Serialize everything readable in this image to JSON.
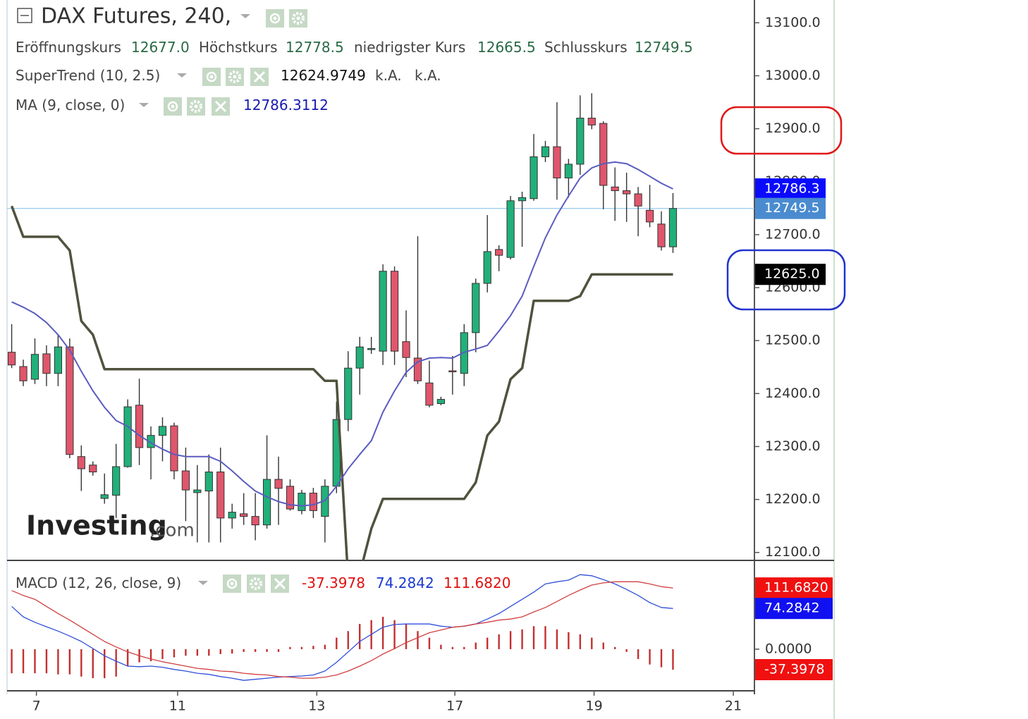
{
  "chart_data": [
    {
      "type": "candlestick",
      "title": "DAX Futures, 240,",
      "legend": [
        {
          "label": "Eröffnungskurs",
          "value": "12677.0"
        },
        {
          "label": "Höchstkurs",
          "value": "12778.5"
        },
        {
          "label": "niedrigster Kurs",
          "value": "12665.5"
        },
        {
          "label": "Schlusskurs",
          "value": "12749.5"
        }
      ],
      "watermark": "Investing",
      "watermark_suffix": ".com",
      "xlim": [
        -0.4,
        63.9
      ],
      "ylim": [
        12085,
        13143
      ],
      "yticks": [
        {
          "value": 12100,
          "label": "12100.0"
        },
        {
          "value": 12200,
          "label": "12200.0"
        },
        {
          "value": 12300,
          "label": "12300.0"
        },
        {
          "value": 12400,
          "label": "12400.0"
        },
        {
          "value": 12500,
          "label": "12500.0"
        },
        {
          "value": 12600,
          "label": "12600.0"
        },
        {
          "value": 12700,
          "label": "12700.0"
        },
        {
          "value": 12800,
          "label": "12800.0"
        },
        {
          "value": 12900,
          "label": "12900.0"
        },
        {
          "value": 13000,
          "label": "13000.0"
        },
        {
          "value": 13100,
          "label": "13100.0"
        }
      ],
      "up_color": "#22b07a",
      "down_color": "#e0566c",
      "open": [
        12478,
        12451,
        12427,
        12475,
        12438,
        12488,
        12281,
        12265,
        12202,
        12208,
        12262,
        12378,
        12298,
        12321,
        12339,
        12254,
        12213,
        12216,
        12252,
        12165,
        12173,
        12168,
        12152,
        12238,
        12225,
        12179,
        12212,
        12168,
        12225,
        12351,
        12448,
        12483,
        12480,
        12631,
        12498,
        12467,
        12420,
        12381,
        12443,
        12438,
        12515,
        12608,
        12672,
        12657,
        12764,
        12768,
        12847,
        12866,
        12807,
        12833,
        12920,
        12910,
        12790,
        12783,
        12777,
        12746,
        12720,
        12677
      ],
      "high": [
        12531,
        12464,
        12504,
        12491,
        12511,
        12504,
        12302,
        12272,
        12249,
        12305,
        12389,
        12428,
        12338,
        12355,
        12345,
        12298,
        12265,
        12285,
        12298,
        12192,
        12212,
        12212,
        12321,
        12281,
        12238,
        12218,
        12222,
        12238,
        12385,
        12480,
        12507,
        12507,
        12644,
        12640,
        12557,
        12697,
        12462,
        12394,
        12471,
        12531,
        12617,
        12737,
        12680,
        12773,
        12781,
        12890,
        12877,
        12950,
        12843,
        12963,
        12967,
        12914,
        12827,
        12817,
        12790,
        12794,
        12744,
        12778.5
      ],
      "low": [
        12448,
        12414,
        12418,
        12414,
        12414,
        12278,
        12216,
        12245,
        12192,
        12165,
        12260,
        12265,
        12238,
        12272,
        12238,
        12159,
        12119,
        12119,
        12119,
        12145,
        12152,
        12123,
        12145,
        12152,
        12179,
        12172,
        12165,
        12119,
        12212,
        12329,
        12398,
        12475,
        12454,
        12454,
        12431,
        12418,
        12374,
        12378,
        12398,
        12414,
        12478,
        12591,
        12631,
        12653,
        12677,
        12764,
        12837,
        12766,
        12770,
        12813,
        12899,
        12748,
        12726,
        12724,
        12697,
        12714,
        12670,
        12665.5
      ],
      "close": [
        12454,
        12424,
        12474,
        12438,
        12488,
        12285,
        12258,
        12252,
        12209,
        12262,
        12375,
        12298,
        12321,
        12338,
        12254,
        12218,
        12218,
        12252,
        12165,
        12176,
        12168,
        12152,
        12238,
        12221,
        12182,
        12212,
        12179,
        12225,
        12351,
        12448,
        12488,
        12485,
        12631,
        12480,
        12468,
        12424,
        12378,
        12389,
        12442,
        12515,
        12608,
        12668,
        12661,
        12764,
        12770,
        12847,
        12866,
        12807,
        12833,
        12920,
        12907,
        12793,
        12783,
        12777,
        12754,
        12724,
        12677,
        12749.5
      ],
      "series": [
        {
          "name": "SuperTrend (10, 2.5)",
          "color": "#50523e",
          "width": 3.5,
          "legend_values": [
            "12624.9749",
            "k.A.",
            "k.A."
          ],
          "values": [
            12754,
            12696,
            12696,
            12696,
            12696,
            12670,
            12537,
            12511,
            12446,
            12446,
            12446,
            12446,
            12446,
            12446,
            12446,
            12446,
            12446,
            12446,
            12446,
            12446,
            12446,
            12446,
            12446,
            12446,
            12446,
            12446,
            12446,
            12424,
            12424,
            12050,
            12060,
            12145,
            12201,
            12201,
            12201,
            12201,
            12201,
            12201,
            12201,
            12201,
            12232,
            12321,
            12347,
            12427,
            12448,
            12575,
            12575,
            12575,
            12575,
            12584,
            12625,
            12625,
            12625,
            12625,
            12625,
            12625,
            12625,
            12624.9749
          ]
        },
        {
          "name": "MA (9, close, 0)",
          "color": "#5a5cc0",
          "width": 2,
          "legend_values": [
            "12786.3112"
          ],
          "values": [
            12573,
            12563,
            12551,
            12534,
            12511,
            12482,
            12442,
            12405,
            12374,
            12349,
            12338,
            12321,
            12307,
            12295,
            12285,
            12281,
            12281,
            12281,
            12272,
            12254,
            12234,
            12216,
            12205,
            12196,
            12190,
            12188,
            12190,
            12198,
            12225,
            12258,
            12285,
            12311,
            12365,
            12405,
            12440,
            12460,
            12467,
            12468,
            12467,
            12478,
            12484,
            12491,
            12518,
            12547,
            12584,
            12640,
            12694,
            12737,
            12773,
            12807,
            12826,
            12834,
            12837,
            12834,
            12823,
            12810,
            12797,
            12786.3112
          ]
        }
      ],
      "price_labels": [
        {
          "value": 12786.3,
          "label": "12786.3",
          "color": "#0a0aff"
        },
        {
          "value": 12749.5,
          "label": "12749.5",
          "color": "#4a8bd0",
          "line": true
        },
        {
          "value": 12625,
          "label": "12625.0",
          "color": "#000000"
        }
      ]
    },
    {
      "type": "line",
      "title": "MACD (12, 26, close, 9)",
      "legend_values": [
        "-37.3978",
        "74.2842",
        "111.6820"
      ],
      "xlim": [
        -0.4,
        63.9
      ],
      "xticks": [
        {
          "value": 2.13,
          "label": "7"
        },
        {
          "value": 14.3,
          "label": "11"
        },
        {
          "value": 26.3,
          "label": "13"
        },
        {
          "value": 38.2,
          "label": "17"
        },
        {
          "value": 50.2,
          "label": "19"
        },
        {
          "value": 62.2,
          "label": "21"
        }
      ],
      "ylim": [
        -76,
        162
      ],
      "yticks": [
        {
          "value": 0,
          "label": "0.0000"
        }
      ],
      "series": [
        {
          "kind": "histogram",
          "color": "#c43030",
          "values": [
            -44,
            -44,
            -44,
            -44,
            -46,
            -46,
            -50,
            -53,
            -53,
            -50,
            -31,
            -24,
            -22,
            -18,
            -15,
            -12,
            -12,
            -12,
            -9,
            -8,
            -5,
            -5,
            -5,
            -5,
            4,
            4,
            6,
            8,
            21,
            33,
            46,
            53,
            59,
            53,
            46,
            33,
            21,
            8,
            4,
            4,
            12,
            21,
            27,
            33,
            36,
            42,
            42,
            36,
            31,
            27,
            21,
            12,
            4,
            -5,
            -18,
            -28,
            -33,
            -37.3978
          ]
        },
        {
          "kind": "line",
          "color": "#3050d8",
          "values": [
            78,
            59,
            49,
            41,
            33,
            24,
            14,
            1,
            -12,
            -22,
            -31,
            -32,
            -31,
            -33,
            -37,
            -40,
            -44,
            -46,
            -50,
            -53,
            -57,
            -55,
            -53,
            -51,
            -50,
            -49,
            -47,
            -40,
            -24,
            -5,
            14,
            27,
            40,
            45,
            46,
            46,
            46,
            42,
            40,
            42,
            46,
            55,
            65,
            78,
            91,
            104,
            119,
            123,
            126,
            136,
            134,
            127,
            119,
            109,
            98,
            85,
            76,
            74.2842
          ]
        },
        {
          "kind": "line",
          "color": "#d04040",
          "values": [
            107,
            98,
            91,
            78,
            65,
            53,
            40,
            27,
            14,
            4,
            -5,
            -12,
            -18,
            -23,
            -27,
            -31,
            -35,
            -37,
            -40,
            -41,
            -44,
            -46,
            -47,
            -50,
            -51,
            -53,
            -53,
            -51,
            -47,
            -40,
            -31,
            -21,
            -9,
            1,
            12,
            21,
            30,
            35,
            40,
            42,
            46,
            49,
            53,
            55,
            59,
            68,
            76,
            87,
            98,
            108,
            117,
            121,
            123,
            123,
            123,
            119,
            114,
            111.682
          ]
        }
      ],
      "price_labels": [
        {
          "value": 111.682,
          "label": "111.6820",
          "color": "#f01010"
        },
        {
          "value": 74.2842,
          "label": "74.2842",
          "color": "#1010f0"
        },
        {
          "value": -37.3978,
          "label": "-37.3978",
          "color": "#f01010"
        }
      ]
    }
  ]
}
